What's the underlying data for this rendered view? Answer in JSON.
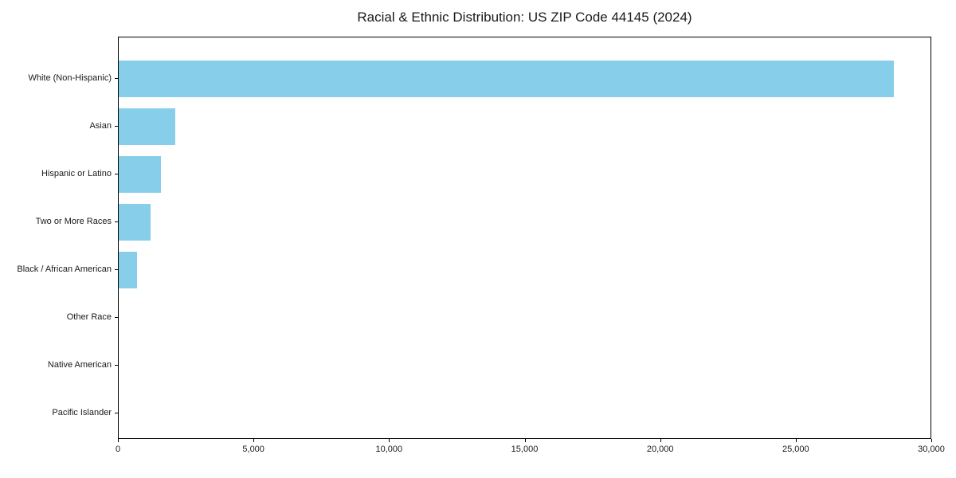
{
  "chart_data": {
    "type": "bar",
    "orientation": "horizontal",
    "title": "Racial & Ethnic Distribution: US ZIP Code 44145 (2024)",
    "xlabel": "",
    "ylabel": "",
    "categories": [
      "White (Non-Hispanic)",
      "Asian",
      "Hispanic or Latino",
      "Two or More Races",
      "Black / African American",
      "Other Race",
      "Native American",
      "Pacific Islander"
    ],
    "values": [
      28600,
      2100,
      1550,
      1180,
      670,
      0,
      0,
      0
    ],
    "xlim": [
      0,
      30000
    ],
    "x_ticks": [
      0,
      5000,
      10000,
      15000,
      20000,
      25000,
      30000
    ],
    "x_tick_labels": [
      "0",
      "5,000",
      "10,000",
      "15,000",
      "20,000",
      "25,000",
      "30,000"
    ],
    "bar_color": "#87CEEB",
    "spine_color": "#000000",
    "background_color": "#ffffff",
    "grid": false,
    "legend": false
  }
}
